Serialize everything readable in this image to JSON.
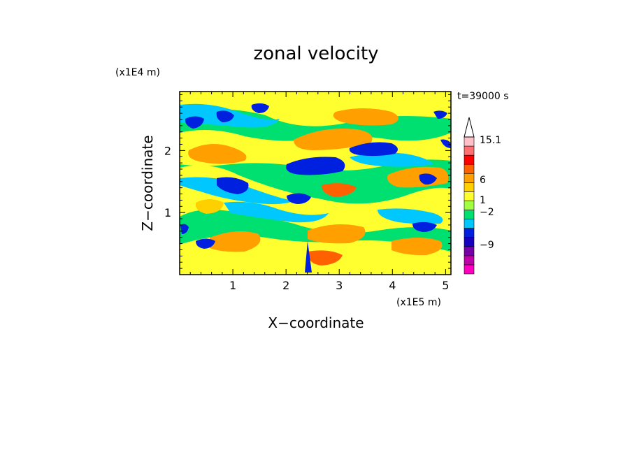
{
  "chart_data": {
    "type": "heatmap",
    "title": "zonal velocity",
    "xlabel": "X−coordinate",
    "ylabel": "Z−coordinate",
    "x_unit": "(x1E5 m)",
    "y_unit": "(x1E4 m)",
    "time_label": "t=39000 s",
    "xlim": [
      0,
      5.1
    ],
    "ylim": [
      0,
      2.95
    ],
    "x_ticks": [
      "1",
      "2",
      "3",
      "4",
      "5"
    ],
    "y_ticks": [
      "1",
      "2"
    ],
    "colorbar": {
      "labels": [
        "15.1",
        "6",
        "1",
        "−2",
        "−9"
      ],
      "colors": [
        "#ff00c0",
        "#c000a8",
        "#7800a8",
        "#1800c0",
        "#0020e0",
        "#00c8ff",
        "#00e070",
        "#a0ff40",
        "#ffff30",
        "#ffd000",
        "#ffa000",
        "#ff6000",
        "#ff0000",
        "#ff7070",
        "#ffc0c8"
      ]
    }
  }
}
